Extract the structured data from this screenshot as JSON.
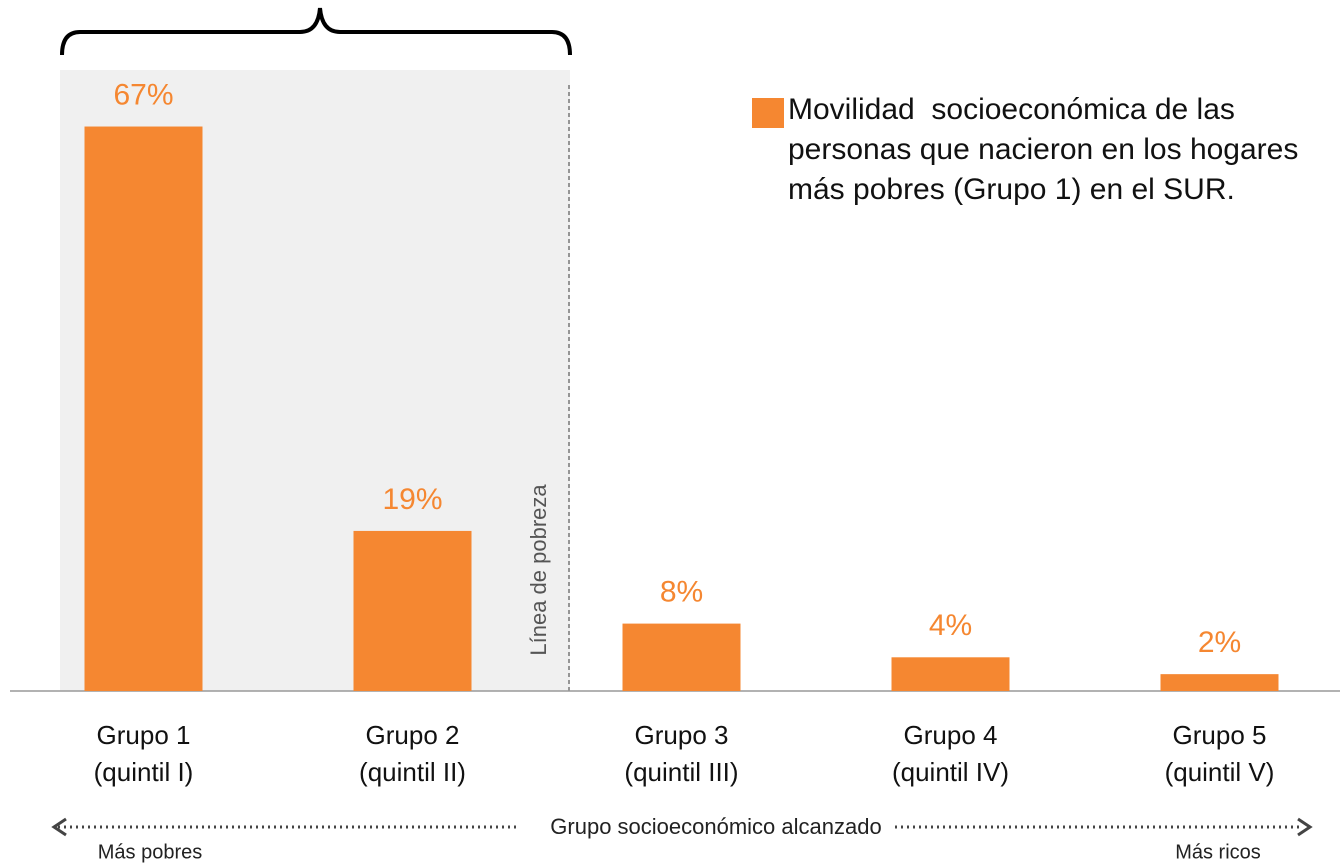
{
  "chart_data": {
    "type": "bar",
    "categories": [
      [
        "Grupo 1",
        "(quintil I)"
      ],
      [
        "Grupo 2",
        "(quintil II)"
      ],
      [
        "Grupo 3",
        "(quintil III)"
      ],
      [
        "Grupo 4",
        "(quintil IV)"
      ],
      [
        "Grupo 5",
        "(quintil V)"
      ]
    ],
    "series": [
      {
        "name": "Movilidad  socioeconómica de las personas que nacieron en los hogares más pobres (Grupo 1) en el SUR.",
        "color": "#f58731",
        "values": [
          67,
          19,
          8,
          4,
          2
        ],
        "value_labels": [
          "67%",
          "19%",
          "8%",
          "4%",
          "2%"
        ]
      }
    ],
    "ylim": [
      0,
      80
    ],
    "annotations": {
      "poverty_line": "Línea de pobreza",
      "x_axis": "Grupo socioeconómico alcanzado",
      "left": "Más  pobres",
      "right": "Más ricos"
    }
  }
}
